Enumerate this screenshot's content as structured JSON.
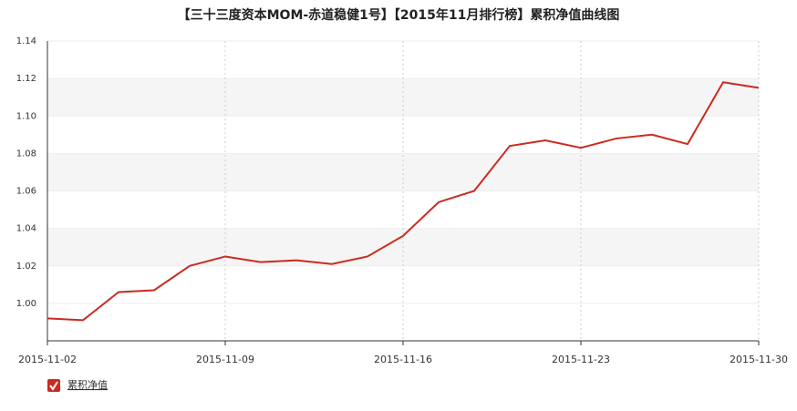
{
  "chart_data": {
    "type": "line",
    "title": "【三十三度资本MOM-赤道稳健1号】【2015年11月排行榜】累积净值曲线图",
    "categories": [
      "2015-11-02",
      null,
      null,
      null,
      null,
      "2015-11-09",
      null,
      null,
      null,
      null,
      "2015-11-16",
      null,
      null,
      null,
      null,
      "2015-11-23",
      null,
      null,
      null,
      null,
      "2015-11-30"
    ],
    "series": [
      {
        "name": "累积净值",
        "color": "#cc2a1f",
        "values": [
          0.992,
          0.991,
          1.006,
          1.007,
          1.02,
          1.025,
          1.022,
          1.023,
          1.021,
          1.025,
          1.036,
          1.054,
          1.06,
          1.084,
          1.087,
          1.083,
          1.088,
          1.09,
          1.085,
          1.118,
          1.115
        ]
      }
    ],
    "ylim": [
      0.98,
      1.14
    ],
    "yticks": [
      {
        "value": 1.0,
        "label": "1.00"
      },
      1.02,
      1.04,
      1.06,
      1.08,
      {
        "value": 1.1,
        "label": "1.10"
      },
      1.12,
      1.14
    ],
    "grid": true
  }
}
